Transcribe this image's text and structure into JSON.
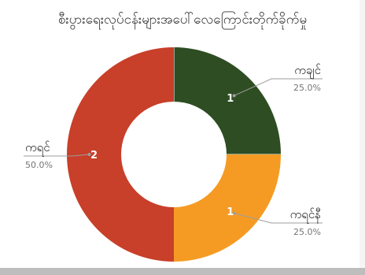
{
  "chart_data": {
    "type": "pie",
    "title": "စီးပွားရေးလုပ်ငန်းများအပေါ်လေကြောင်းတိုက်ခိုက်မှု",
    "donut": true,
    "labels": [
      "ကချင်",
      "ကရင်နီ",
      "ကရင်"
    ],
    "values": [
      1,
      1,
      2
    ],
    "percent_labels": [
      "25.0%",
      "25.0%",
      "50.0%"
    ],
    "colors": [
      "#2e4d23",
      "#f59b24",
      "#c83f2a"
    ],
    "legend": "callouts"
  }
}
